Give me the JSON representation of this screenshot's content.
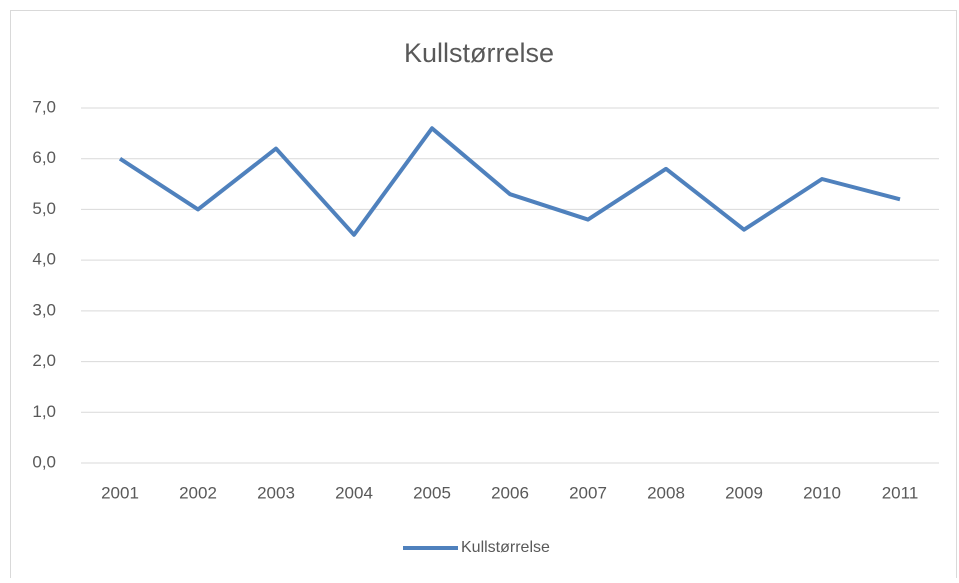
{
  "chart_data": {
    "type": "line",
    "title": "Kullstørrelse",
    "categories": [
      "2001",
      "2002",
      "2003",
      "2004",
      "2005",
      "2006",
      "2007",
      "2008",
      "2009",
      "2010",
      "2011"
    ],
    "series": [
      {
        "name": "Kullstørrelse",
        "color": "#4f81bd",
        "values": [
          6.0,
          5.0,
          6.2,
          4.5,
          6.6,
          5.3,
          4.8,
          5.8,
          4.6,
          5.6,
          5.2
        ]
      }
    ],
    "ylim": [
      0,
      7
    ],
    "yticks": [
      {
        "value": 0,
        "label": "0,0"
      },
      {
        "value": 1,
        "label": "1,0"
      },
      {
        "value": 2,
        "label": "2,0"
      },
      {
        "value": 3,
        "label": "3,0"
      },
      {
        "value": 4,
        "label": "4,0"
      },
      {
        "value": 5,
        "label": "5,0"
      },
      {
        "value": 6,
        "label": "6,0"
      },
      {
        "value": 7,
        "label": "7,0"
      }
    ],
    "grid": true,
    "legend": "bottom"
  }
}
